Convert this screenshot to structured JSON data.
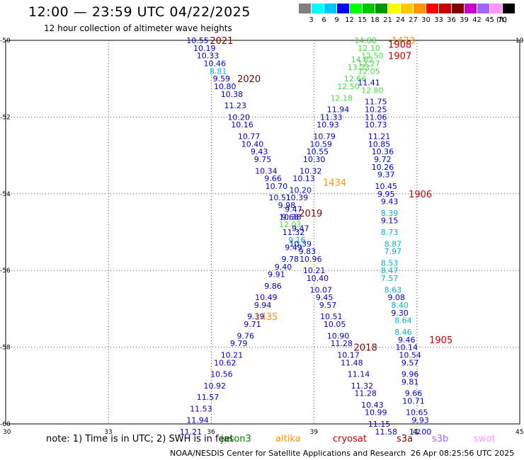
{
  "header": {
    "title": "12:00 — 23:59 UTC 04/22/2025",
    "subtitle": "12 hour collection of altimeter wave heights"
  },
  "legend": {
    "unit": "(ft)",
    "bins": [
      {
        "label": "3",
        "color": "#808080"
      },
      {
        "label": "6",
        "color": "#00ffff"
      },
      {
        "label": "9",
        "color": "#00c8ff"
      },
      {
        "label": "12",
        "color": "#0000ff"
      },
      {
        "label": "15",
        "color": "#00ff00"
      },
      {
        "label": "18",
        "color": "#00c800"
      },
      {
        "label": "21",
        "color": "#009600"
      },
      {
        "label": "24",
        "color": "#ffff00"
      },
      {
        "label": "27",
        "color": "#ffc800"
      },
      {
        "label": "30",
        "color": "#ff9600"
      },
      {
        "label": "33",
        "color": "#ff0000"
      },
      {
        "label": "36",
        "color": "#c80000"
      },
      {
        "label": "39",
        "color": "#800000"
      },
      {
        "label": "42",
        "color": "#c800c8"
      },
      {
        "label": "45",
        "color": "#a064ff"
      },
      {
        "label": "70",
        "color": "#ff96ff"
      },
      {
        "label": "",
        "color": "#000000"
      }
    ]
  },
  "map": {
    "lon_ticks": [
      "30",
      "33",
      "36",
      "39",
      "42",
      "45"
    ],
    "lat_ticks": [
      "-50",
      "-52",
      "-54",
      "-56",
      "-58",
      "-60"
    ],
    "right_tick": "19",
    "colors": {
      "blue": "#0000c8",
      "cyan": "#00b4dc",
      "green": "#46dc46",
      "red": "#c80000",
      "darkred": "#800000",
      "orange": "#ff9600"
    },
    "time_labels": [
      {
        "text": "2021",
        "lon": 36.3,
        "lat": -50.0,
        "color": "darkred"
      },
      {
        "text": "2020",
        "lon": 37.1,
        "lat": -51.0,
        "color": "darkred"
      },
      {
        "text": "2019",
        "lon": 38.9,
        "lat": -54.5,
        "color": "darkred"
      },
      {
        "text": "2018",
        "lon": 40.5,
        "lat": -58.0,
        "color": "darkred"
      },
      {
        "text": "1434",
        "lon": 39.6,
        "lat": -53.7,
        "color": "orange"
      },
      {
        "text": "1435",
        "lon": 37.6,
        "lat": -57.2,
        "color": "orange"
      },
      {
        "text": "1433",
        "lon": 41.6,
        "lat": -50.0,
        "color": "orange"
      },
      {
        "text": "1908",
        "lon": 41.5,
        "lat": -50.1,
        "color": "red"
      },
      {
        "text": "1907",
        "lon": 41.5,
        "lat": -50.4,
        "color": "red"
      },
      {
        "text": "1906",
        "lon": 42.1,
        "lat": -54.0,
        "color": "red"
      },
      {
        "text": "1905",
        "lon": 42.7,
        "lat": -57.8,
        "color": "red"
      }
    ],
    "tracks": [
      {
        "name": "track-a",
        "points": [
          {
            "v": "10.55",
            "lon": 35.6,
            "lat": -50.0,
            "c": "blue"
          },
          {
            "v": "10.19",
            "lon": 35.8,
            "lat": -50.2,
            "c": "blue"
          },
          {
            "v": "10.33",
            "lon": 35.9,
            "lat": -50.4,
            "c": "blue"
          },
          {
            "v": "10.46",
            "lon": 36.1,
            "lat": -50.6,
            "c": "blue"
          },
          {
            "v": "8.81",
            "lon": 36.2,
            "lat": -50.8,
            "c": "cyan"
          },
          {
            "v": "9.59",
            "lon": 36.3,
            "lat": -51.0,
            "c": "blue"
          },
          {
            "v": "10.80",
            "lon": 36.4,
            "lat": -51.2,
            "c": "blue"
          },
          {
            "v": "10.38",
            "lon": 36.6,
            "lat": -51.4,
            "c": "blue"
          },
          {
            "v": "11.23",
            "lon": 36.7,
            "lat": -51.7,
            "c": "blue"
          },
          {
            "v": "10.20",
            "lon": 36.8,
            "lat": -52.0,
            "c": "blue"
          },
          {
            "v": "10.16",
            "lon": 36.9,
            "lat": -52.2,
            "c": "blue"
          },
          {
            "v": "10.77",
            "lon": 37.1,
            "lat": -52.5,
            "c": "blue"
          },
          {
            "v": "10.40",
            "lon": 37.2,
            "lat": -52.7,
            "c": "blue"
          },
          {
            "v": "9.43",
            "lon": 37.4,
            "lat": -52.9,
            "c": "blue"
          },
          {
            "v": "9.75",
            "lon": 37.5,
            "lat": -53.1,
            "c": "blue"
          },
          {
            "v": "10.34",
            "lon": 37.6,
            "lat": -53.4,
            "c": "blue"
          },
          {
            "v": "9.66",
            "lon": 37.8,
            "lat": -53.6,
            "c": "blue"
          },
          {
            "v": "10.70",
            "lon": 37.9,
            "lat": -53.8,
            "c": "blue"
          },
          {
            "v": "10.51",
            "lon": 38.0,
            "lat": -54.1,
            "c": "blue"
          },
          {
            "v": "9.98",
            "lon": 38.2,
            "lat": -54.3,
            "c": "blue"
          },
          {
            "v": "10.38",
            "lon": 38.3,
            "lat": -54.6,
            "c": "blue"
          },
          {
            "v": "12.03",
            "lon": 38.3,
            "lat": -54.8,
            "c": "green"
          },
          {
            "v": "11.32",
            "lon": 38.4,
            "lat": -55.0,
            "c": "blue"
          },
          {
            "v": "9.16",
            "lon": 38.5,
            "lat": -55.2,
            "c": "cyan"
          },
          {
            "v": "9.49",
            "lon": 38.4,
            "lat": -55.4,
            "c": "blue"
          },
          {
            "v": "9.78",
            "lon": 38.3,
            "lat": -55.7,
            "c": "blue"
          },
          {
            "v": "9.40",
            "lon": 38.1,
            "lat": -55.9,
            "c": "blue"
          },
          {
            "v": "9.91",
            "lon": 37.9,
            "lat": -56.1,
            "c": "blue"
          },
          {
            "v": "9.86",
            "lon": 37.8,
            "lat": -56.4,
            "c": "blue"
          },
          {
            "v": "10.49",
            "lon": 37.6,
            "lat": -56.7,
            "c": "blue"
          },
          {
            "v": "9.94",
            "lon": 37.5,
            "lat": -56.9,
            "c": "blue"
          },
          {
            "v": "9.39",
            "lon": 37.3,
            "lat": -57.2,
            "c": "blue"
          },
          {
            "v": "9.71",
            "lon": 37.2,
            "lat": -57.4,
            "c": "blue"
          },
          {
            "v": "9.76",
            "lon": 37.0,
            "lat": -57.7,
            "c": "blue"
          },
          {
            "v": "9.79",
            "lon": 36.8,
            "lat": -57.9,
            "c": "blue"
          },
          {
            "v": "10.21",
            "lon": 36.6,
            "lat": -58.2,
            "c": "blue"
          },
          {
            "v": "10.62",
            "lon": 36.4,
            "lat": -58.4,
            "c": "blue"
          },
          {
            "v": "10.56",
            "lon": 36.3,
            "lat": -58.7,
            "c": "blue"
          },
          {
            "v": "10.92",
            "lon": 36.1,
            "lat": -59.0,
            "c": "blue"
          },
          {
            "v": "11.57",
            "lon": 35.9,
            "lat": -59.3,
            "c": "blue"
          },
          {
            "v": "11.53",
            "lon": 35.7,
            "lat": -59.6,
            "c": "blue"
          },
          {
            "v": "11.94",
            "lon": 35.6,
            "lat": -59.9,
            "c": "blue"
          },
          {
            "v": "11.21",
            "lon": 35.4,
            "lat": -60.2,
            "c": "blue"
          }
        ]
      },
      {
        "name": "track-b",
        "points": [
          {
            "v": "14.88",
            "lon": 40.5,
            "lat": -50.0,
            "c": "green"
          },
          {
            "v": "12.10",
            "lon": 40.6,
            "lat": -50.2,
            "c": "green"
          },
          {
            "v": "12.50",
            "lon": 40.7,
            "lat": -50.4,
            "c": "green"
          },
          {
            "v": "14.62",
            "lon": 40.4,
            "lat": -50.5,
            "c": "green"
          },
          {
            "v": "12.27",
            "lon": 40.6,
            "lat": -50.6,
            "c": "green"
          },
          {
            "v": "13.23",
            "lon": 40.3,
            "lat": -50.7,
            "c": "green"
          },
          {
            "v": "12.05",
            "lon": 40.6,
            "lat": -50.8,
            "c": "green"
          },
          {
            "v": "12.66",
            "lon": 40.2,
            "lat": -51.0,
            "c": "green"
          },
          {
            "v": "11.41",
            "lon": 40.6,
            "lat": -51.1,
            "c": "blue"
          },
          {
            "v": "12.50",
            "lon": 40.0,
            "lat": -51.2,
            "c": "green"
          },
          {
            "v": "12.80",
            "lon": 40.7,
            "lat": -51.3,
            "c": "green"
          },
          {
            "v": "12.18",
            "lon": 39.8,
            "lat": -51.5,
            "c": "green"
          },
          {
            "v": "11.75",
            "lon": 40.8,
            "lat": -51.6,
            "c": "blue"
          },
          {
            "v": "11.94",
            "lon": 39.7,
            "lat": -51.8,
            "c": "blue"
          },
          {
            "v": "10.25",
            "lon": 40.8,
            "lat": -51.8,
            "c": "blue"
          },
          {
            "v": "11.33",
            "lon": 39.5,
            "lat": -52.0,
            "c": "blue"
          },
          {
            "v": "11.06",
            "lon": 40.8,
            "lat": -52.0,
            "c": "blue"
          },
          {
            "v": "10.93",
            "lon": 39.4,
            "lat": -52.2,
            "c": "blue"
          },
          {
            "v": "10.73",
            "lon": 40.8,
            "lat": -52.2,
            "c": "blue"
          },
          {
            "v": "10.79",
            "lon": 39.3,
            "lat": -52.5,
            "c": "blue"
          },
          {
            "v": "11.21",
            "lon": 40.9,
            "lat": -52.5,
            "c": "blue"
          },
          {
            "v": "10.59",
            "lon": 39.2,
            "lat": -52.7,
            "c": "blue"
          },
          {
            "v": "10.85",
            "lon": 40.9,
            "lat": -52.7,
            "c": "blue"
          },
          {
            "v": "10.55",
            "lon": 39.1,
            "lat": -52.9,
            "c": "blue"
          },
          {
            "v": "10.36",
            "lon": 41.0,
            "lat": -52.9,
            "c": "blue"
          },
          {
            "v": "10.30",
            "lon": 39.0,
            "lat": -53.1,
            "c": "blue"
          },
          {
            "v": "9.72",
            "lon": 41.0,
            "lat": -53.1,
            "c": "blue"
          },
          {
            "v": "10.32",
            "lon": 38.9,
            "lat": -53.4,
            "c": "blue"
          },
          {
            "v": "10.26",
            "lon": 41.0,
            "lat": -53.3,
            "c": "blue"
          },
          {
            "v": "10.13",
            "lon": 38.7,
            "lat": -53.6,
            "c": "blue"
          },
          {
            "v": "9.37",
            "lon": 41.1,
            "lat": -53.5,
            "c": "blue"
          },
          {
            "v": "10.45",
            "lon": 41.1,
            "lat": -53.8,
            "c": "blue"
          },
          {
            "v": "10.20",
            "lon": 38.6,
            "lat": -53.9,
            "c": "blue"
          },
          {
            "v": "9.95",
            "lon": 41.1,
            "lat": -54.0,
            "c": "blue"
          },
          {
            "v": "10.39",
            "lon": 38.5,
            "lat": -54.1,
            "c": "blue"
          },
          {
            "v": "9.43",
            "lon": 41.2,
            "lat": -54.2,
            "c": "blue"
          },
          {
            "v": "9.47",
            "lon": 38.4,
            "lat": -54.4,
            "c": "blue"
          },
          {
            "v": "8.39",
            "lon": 41.2,
            "lat": -54.5,
            "c": "cyan"
          },
          {
            "v": "9.68",
            "lon": 38.3,
            "lat": -54.6,
            "c": "blue"
          },
          {
            "v": "9.15",
            "lon": 41.2,
            "lat": -54.7,
            "c": "blue"
          },
          {
            "v": "9.47",
            "lon": 38.6,
            "lat": -54.9,
            "c": "blue"
          },
          {
            "v": "8.73",
            "lon": 41.2,
            "lat": -55.0,
            "c": "cyan"
          },
          {
            "v": "10.39",
            "lon": 38.6,
            "lat": -55.3,
            "c": "blue"
          },
          {
            "v": "8.87",
            "lon": 41.3,
            "lat": -55.3,
            "c": "cyan"
          },
          {
            "v": "9.83",
            "lon": 38.8,
            "lat": -55.5,
            "c": "blue"
          },
          {
            "v": "7.97",
            "lon": 41.3,
            "lat": -55.5,
            "c": "cyan"
          },
          {
            "v": "10.96",
            "lon": 38.9,
            "lat": -55.7,
            "c": "blue"
          },
          {
            "v": "8.53",
            "lon": 41.2,
            "lat": -55.8,
            "c": "cyan"
          },
          {
            "v": "10.21",
            "lon": 39.0,
            "lat": -56.0,
            "c": "blue"
          },
          {
            "v": "8.47",
            "lon": 41.2,
            "lat": -56.0,
            "c": "cyan"
          },
          {
            "v": "10.40",
            "lon": 39.1,
            "lat": -56.2,
            "c": "blue"
          },
          {
            "v": "7.57",
            "lon": 41.2,
            "lat": -56.2,
            "c": "cyan"
          },
          {
            "v": "10.07",
            "lon": 39.2,
            "lat": -56.5,
            "c": "blue"
          },
          {
            "v": "8.63",
            "lon": 41.3,
            "lat": -56.5,
            "c": "cyan"
          },
          {
            "v": "9.45",
            "lon": 39.3,
            "lat": -56.7,
            "c": "blue"
          },
          {
            "v": "9.08",
            "lon": 41.4,
            "lat": -56.7,
            "c": "blue"
          },
          {
            "v": "9.57",
            "lon": 39.4,
            "lat": -56.9,
            "c": "blue"
          },
          {
            "v": "8.40",
            "lon": 41.5,
            "lat": -56.9,
            "c": "cyan"
          },
          {
            "v": "10.51",
            "lon": 39.5,
            "lat": -57.2,
            "c": "blue"
          },
          {
            "v": "9.30",
            "lon": 41.5,
            "lat": -57.1,
            "c": "blue"
          },
          {
            "v": "10.05",
            "lon": 39.6,
            "lat": -57.4,
            "c": "blue"
          },
          {
            "v": "8.64",
            "lon": 41.6,
            "lat": -57.3,
            "c": "cyan"
          },
          {
            "v": "10.90",
            "lon": 39.7,
            "lat": -57.7,
            "c": "blue"
          },
          {
            "v": "8.46",
            "lon": 41.6,
            "lat": -57.6,
            "c": "cyan"
          },
          {
            "v": "9.46",
            "lon": 41.7,
            "lat": -57.8,
            "c": "blue"
          },
          {
            "v": "11.28",
            "lon": 39.8,
            "lat": -57.9,
            "c": "blue"
          },
          {
            "v": "10.14",
            "lon": 41.7,
            "lat": -58.0,
            "c": "blue"
          },
          {
            "v": "10.17",
            "lon": 40.0,
            "lat": -58.2,
            "c": "blue"
          },
          {
            "v": "10.54",
            "lon": 41.8,
            "lat": -58.2,
            "c": "blue"
          },
          {
            "v": "11.48",
            "lon": 40.1,
            "lat": -58.4,
            "c": "blue"
          },
          {
            "v": "9.57",
            "lon": 41.8,
            "lat": -58.4,
            "c": "blue"
          },
          {
            "v": "11.14",
            "lon": 40.3,
            "lat": -58.7,
            "c": "blue"
          },
          {
            "v": "9.96",
            "lon": 41.8,
            "lat": -58.7,
            "c": "blue"
          },
          {
            "v": "11.32",
            "lon": 40.4,
            "lat": -59.0,
            "c": "blue"
          },
          {
            "v": "9.81",
            "lon": 41.8,
            "lat": -58.9,
            "c": "blue"
          },
          {
            "v": "11.28",
            "lon": 40.5,
            "lat": -59.2,
            "c": "blue"
          },
          {
            "v": "9.66",
            "lon": 41.9,
            "lat": -59.2,
            "c": "blue"
          },
          {
            "v": "10.43",
            "lon": 40.7,
            "lat": -59.5,
            "c": "blue"
          },
          {
            "v": "10.71",
            "lon": 41.9,
            "lat": -59.4,
            "c": "blue"
          },
          {
            "v": "10.99",
            "lon": 40.8,
            "lat": -59.7,
            "c": "blue"
          },
          {
            "v": "10.65",
            "lon": 42.0,
            "lat": -59.7,
            "c": "blue"
          },
          {
            "v": "11.15",
            "lon": 40.9,
            "lat": -60.0,
            "c": "blue"
          },
          {
            "v": "9.93",
            "lon": 42.1,
            "lat": -59.9,
            "c": "blue"
          },
          {
            "v": "11.58",
            "lon": 41.1,
            "lat": -60.2,
            "c": "blue"
          },
          {
            "v": "11.00",
            "lon": 42.1,
            "lat": -60.2,
            "c": "blue"
          }
        ]
      }
    ]
  },
  "footer": {
    "note": "note: 1) Time is in UTC; 2) SWH is in feet",
    "satellites": [
      {
        "label": "jason3",
        "color": "#008000"
      },
      {
        "label": "altika",
        "color": "#ff9600"
      },
      {
        "label": "cryosat",
        "color": "#c80000"
      },
      {
        "label": "s3a",
        "color": "#800000"
      },
      {
        "label": "s3b",
        "color": "#a064ff"
      },
      {
        "label": "swot",
        "color": "#ff96ff"
      }
    ],
    "credit": "NOAA/NESDIS Center for Satellite Applications and Research",
    "timestamp": "26 Apr 08:25:56 UTC 2025"
  }
}
